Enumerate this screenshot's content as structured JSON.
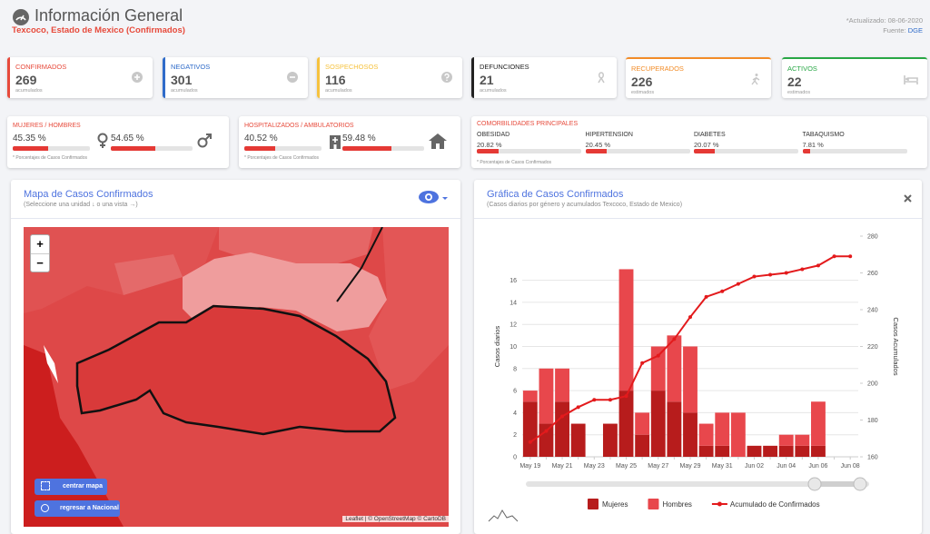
{
  "header": {
    "title": "Información General",
    "subtitle": "Texcoco, Estado de Mexico (Confirmados)",
    "updated": "*Actualizado: 08-06-2020",
    "source_label": "Fuente:",
    "source": "DGE"
  },
  "cards": [
    {
      "title": "CONFIRMADOS",
      "value": 269,
      "note": "acumulados",
      "color": "#e74a3b",
      "border": "left"
    },
    {
      "title": "NEGATIVOS",
      "value": 301,
      "note": "acumulados",
      "color": "#2f6bc9",
      "border": "left"
    },
    {
      "title": "SOSPECHOSOS",
      "value": 116,
      "note": "acumulados",
      "color": "#f6c23e",
      "border": "left"
    },
    {
      "title": "DEFUNCIONES",
      "value": 21,
      "note": "acumulados",
      "color": "#222222",
      "border": "left"
    },
    {
      "title": "RECUPERADOS",
      "value": 226,
      "note": "estimados",
      "color": "#f28c28",
      "border": "top"
    },
    {
      "title": "ACTIVOS",
      "value": 22,
      "note": "estimados",
      "color": "#28a745",
      "border": "top"
    }
  ],
  "ratios": [
    {
      "title": "MUJERES / HOMBRES",
      "items": [
        {
          "value": 45.35,
          "label": "45.35 %"
        },
        {
          "value": 54.65,
          "label": "54.65 %"
        }
      ],
      "note": "* Porcentajes de Casos Confirmados"
    },
    {
      "title": "HOSPITALIZADOS / AMBULATORIOS",
      "items": [
        {
          "value": 40.52,
          "label": "40.52 %"
        },
        {
          "value": 59.48,
          "label": "59.48 %"
        }
      ],
      "note": "* Porcentajes de Casos Confirmados"
    }
  ],
  "comorbidities": {
    "title": "COMORBILIDADES PRINCIPALES",
    "items": [
      {
        "name": "OBESIDAD",
        "value": 20.82,
        "label": "20.82 %"
      },
      {
        "name": "HIPERTENSION",
        "value": 20.45,
        "label": "20.45 %"
      },
      {
        "name": "DIABETES",
        "value": 20.07,
        "label": "20.07 %"
      },
      {
        "name": "TABAQUISMO",
        "value": 7.81,
        "label": "7.81 %"
      }
    ],
    "note": "* Porcentajes de Casos Confirmados"
  },
  "map": {
    "title": "Mapa de Casos Confirmados",
    "subtitle": "(Seleccione una unidad ↓ o una vista →)",
    "zoom_in": "+",
    "zoom_out": "−",
    "buttons": [
      "centrar mapa",
      "regresar a Nacional"
    ],
    "attribution": "Leaflet | © OpenStreetMap © CartoDB"
  },
  "chart_data": {
    "type": "bar",
    "stacked": true,
    "title": "Gráfica de Casos Confirmados",
    "subtitle": "(Casos diarios por género y acumulados Texcoco, Estado de Mexico)",
    "y_label": "Casos diarios",
    "y2_label": "Casos Acumulados",
    "categories": [
      "May 19",
      null,
      "May 21",
      null,
      "May 23",
      null,
      "May 25",
      null,
      "May 27",
      null,
      "May 29",
      null,
      "May 31",
      null,
      "Jun 02",
      null,
      "Jun 04",
      null,
      "Jun 06",
      null,
      "Jun 08"
    ],
    "series": [
      {
        "name": "Mujeres",
        "color": "#b71c1c",
        "values": [
          5,
          3,
          5,
          3,
          0,
          3,
          6,
          2,
          6,
          5,
          4,
          1,
          1,
          0,
          1,
          1,
          1,
          1,
          1,
          0,
          0
        ]
      },
      {
        "name": "Hombres",
        "color": "#e8474c",
        "values": [
          1,
          5,
          3,
          0,
          0,
          0,
          11,
          2,
          4,
          6,
          6,
          2,
          3,
          4,
          0,
          0,
          1,
          1,
          4,
          0,
          0
        ]
      },
      {
        "name": "Acumulado de Confirmados",
        "type": "line",
        "axis": "y2",
        "color": "#e31a1c",
        "values": [
          168,
          174,
          182,
          187,
          191,
          191,
          193,
          211,
          215,
          224,
          236,
          247,
          250,
          254,
          258,
          259,
          260,
          262,
          264,
          269,
          269
        ]
      }
    ],
    "ylim": [
      0,
      20
    ],
    "yticks": [
      0,
      2,
      4,
      6,
      8,
      10,
      12,
      14,
      16
    ],
    "y2lim": [
      160,
      280
    ],
    "y2ticks": [
      160,
      180,
      200,
      220,
      240,
      260,
      280
    ],
    "grid": true,
    "legend": "bottom"
  }
}
